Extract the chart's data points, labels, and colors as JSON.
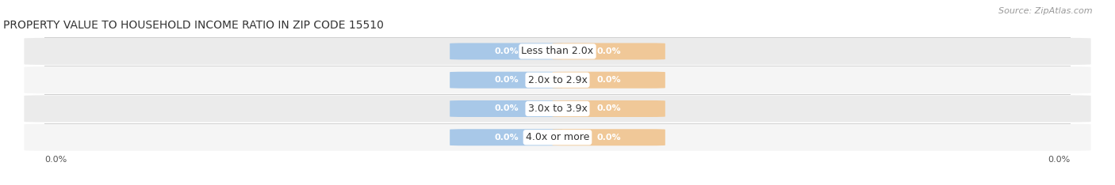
{
  "title": "PROPERTY VALUE TO HOUSEHOLD INCOME RATIO IN ZIP CODE 15510",
  "source": "Source: ZipAtlas.com",
  "categories": [
    "Less than 2.0x",
    "2.0x to 2.9x",
    "3.0x to 3.9x",
    "4.0x or more"
  ],
  "without_mortgage": [
    0.0,
    0.0,
    0.0,
    0.0
  ],
  "with_mortgage": [
    0.0,
    0.0,
    0.0,
    0.0
  ],
  "without_mortgage_color": "#a8c8e8",
  "with_mortgage_color": "#f0c898",
  "title_fontsize": 10,
  "source_fontsize": 8,
  "axis_label_fontsize": 8,
  "legend_fontsize": 8,
  "category_fontsize": 9,
  "value_fontsize": 8,
  "background_color": "#ffffff",
  "row_bg_colors": [
    "#ebebeb",
    "#f5f5f5",
    "#ebebeb",
    "#f5f5f5"
  ],
  "divider_color": "#d0d0d0",
  "left_pct_label": "0.0%",
  "right_pct_label": "0.0%"
}
